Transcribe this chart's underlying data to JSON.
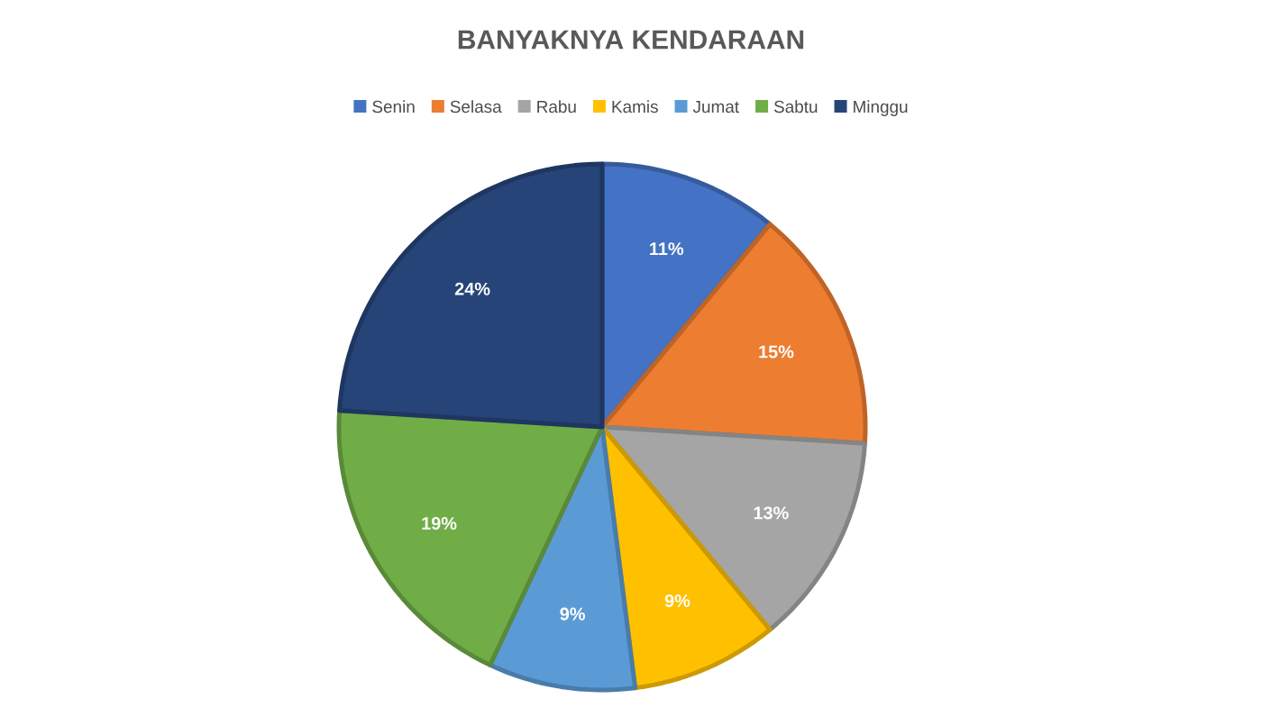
{
  "chart_data": {
    "type": "pie",
    "title": "BANYAKNYA KENDARAAN",
    "categories": [
      "Senin",
      "Selasa",
      "Rabu",
      "Kamis",
      "Jumat",
      "Sabtu",
      "Minggu"
    ],
    "values": [
      11,
      15,
      13,
      9,
      9,
      19,
      24
    ],
    "value_labels": [
      "11%",
      "15%",
      "13%",
      "9%",
      "9%",
      "19%",
      "24%"
    ],
    "colors": [
      "#4472c4",
      "#ed7d31",
      "#a5a5a5",
      "#ffc000",
      "#5b9bd5",
      "#70ad47",
      "#264478"
    ],
    "legend": "top"
  }
}
